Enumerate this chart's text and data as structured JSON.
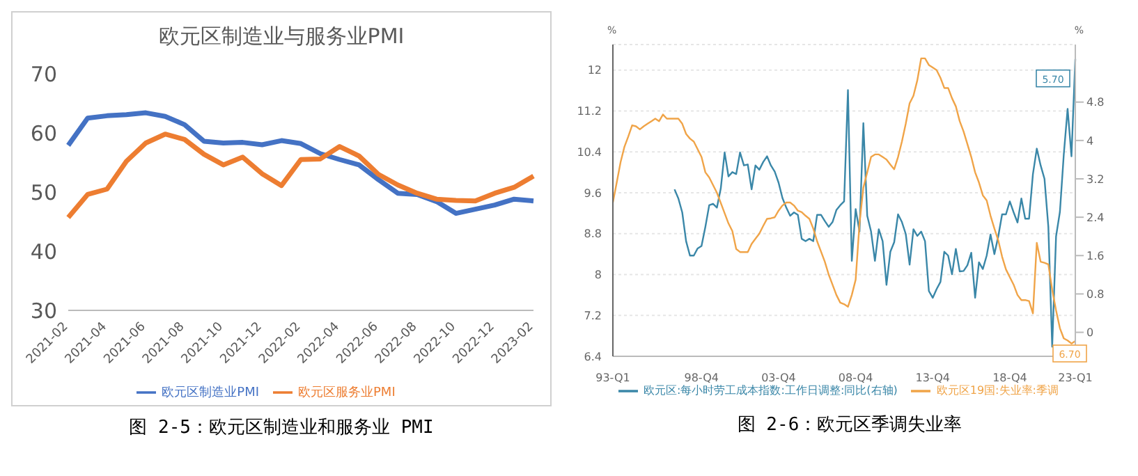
{
  "chart_data": [
    {
      "type": "line",
      "title": "欧元区制造业与服务业PMI",
      "categories": [
        "2021-02",
        null,
        "2021-04",
        null,
        "2021-06",
        null,
        "2021-08",
        null,
        "2021-10",
        null,
        "2021-12",
        null,
        "2022-02",
        null,
        "2022-04",
        null,
        "2022-06",
        null,
        "2022-08",
        null,
        "2022-10",
        null,
        "2022-12",
        null,
        "2023-02"
      ],
      "series": [
        {
          "name": "欧元区制造业PMI",
          "color": "#4472c4",
          "values": [
            57.9,
            62.5,
            62.9,
            63.1,
            63.4,
            62.8,
            61.4,
            58.6,
            58.3,
            58.4,
            58.0,
            58.7,
            58.2,
            56.5,
            55.5,
            54.6,
            52.1,
            49.8,
            49.6,
            48.4,
            46.4,
            47.1,
            47.8,
            48.8,
            48.5
          ]
        },
        {
          "name": "欧元区服务业PMI",
          "color": "#ed7d31",
          "values": [
            45.7,
            49.6,
            50.5,
            55.2,
            58.3,
            59.8,
            58.9,
            56.4,
            54.6,
            55.9,
            53.1,
            51.1,
            55.5,
            55.6,
            57.7,
            56.1,
            53.0,
            51.2,
            49.8,
            48.8,
            48.6,
            48.5,
            49.8,
            50.8,
            52.7
          ]
        }
      ],
      "ylim": [
        30,
        70
      ],
      "yticks": [
        30,
        40,
        50,
        60,
        70
      ],
      "legend": "bottom",
      "annotations": [
        "图 2-5：欧元区制造业和服务业 PMI"
      ]
    },
    {
      "type": "line",
      "ylabel": "%",
      "y2label": "%",
      "categories": [
        "93-Q1",
        null,
        null,
        null,
        null,
        null,
        null,
        null,
        null,
        null,
        null,
        null,
        null,
        null,
        null,
        null,
        null,
        null,
        null,
        null,
        null,
        null,
        null,
        "98-Q4",
        null,
        null,
        null,
        null,
        null,
        null,
        null,
        null,
        null,
        null,
        null,
        null,
        null,
        null,
        null,
        null,
        null,
        null,
        null,
        "03-Q4",
        null,
        null,
        null,
        null,
        null,
        null,
        null,
        null,
        null,
        null,
        null,
        null,
        null,
        null,
        null,
        null,
        null,
        null,
        null,
        "08-Q4",
        null,
        null,
        null,
        null,
        null,
        null,
        null,
        null,
        null,
        null,
        null,
        null,
        null,
        null,
        null,
        null,
        null,
        null,
        null,
        "13-Q4",
        null,
        null,
        null,
        null,
        null,
        null,
        null,
        null,
        null,
        null,
        null,
        null,
        null,
        null,
        null,
        null,
        null,
        null,
        null,
        "18-Q4",
        null,
        null,
        null,
        null,
        null,
        null,
        null,
        null,
        null,
        null,
        null,
        null,
        null,
        null,
        null,
        null,
        "23-Q1"
      ],
      "series": [
        {
          "name": "欧元区:每小时劳工成本指数:工作日调整:同比(右轴)",
          "color": "#3a87a8",
          "axis": "y2",
          "values": [
            null,
            null,
            null,
            null,
            null,
            null,
            null,
            null,
            null,
            null,
            null,
            null,
            null,
            null,
            null,
            null,
            2.98,
            2.79,
            2.5,
            1.9,
            1.6,
            1.6,
            1.75,
            1.8,
            2.2,
            2.65,
            2.68,
            2.6,
            3.0,
            3.75,
            3.25,
            3.34,
            3.3,
            3.75,
            3.48,
            3.5,
            2.98,
            3.48,
            3.39,
            3.55,
            3.67,
            3.48,
            3.35,
            3.12,
            2.8,
            2.6,
            2.43,
            2.5,
            2.45,
            1.95,
            1.9,
            1.95,
            1.9,
            2.45,
            2.45,
            2.32,
            2.2,
            2.3,
            2.55,
            2.65,
            2.73,
            5.05,
            1.49,
            2.57,
            2.1,
            4.36,
            2.43,
            2.1,
            1.49,
            2.15,
            1.9,
            0.99,
            1.68,
            1.88,
            2.46,
            2.3,
            2.05,
            1.41,
            2.15,
            2.01,
            2.1,
            1.9,
            0.86,
            0.72,
            0.9,
            1.05,
            1.68,
            1.6,
            1.21,
            1.74,
            1.27,
            1.28,
            1.4,
            1.66,
            0.72,
            1.46,
            1.32,
            1.6,
            2.04,
            1.63,
            2.0,
            2.46,
            2.46,
            2.73,
            2.5,
            2.29,
            2.79,
            2.37,
            2.37,
            3.3,
            3.83,
            3.48,
            3.2,
            2.2,
            -0.3,
            2.0,
            2.51,
            3.7,
            4.66,
            3.67,
            5.7
          ],
          "value_labels": [
            null,
            null,
            null,
            null,
            null,
            null,
            null,
            null,
            null,
            null,
            null,
            null,
            null,
            null,
            null,
            null,
            null,
            null,
            null,
            null,
            null,
            null,
            null,
            null,
            null,
            null,
            null,
            null,
            null,
            null,
            null,
            null,
            null,
            null,
            null,
            null,
            null,
            null,
            null,
            null,
            null,
            null,
            null,
            null,
            null,
            null,
            null,
            null,
            null,
            null,
            null,
            null,
            null,
            null,
            null,
            null,
            null,
            null,
            null,
            null,
            null,
            null,
            null,
            null,
            null,
            null,
            null,
            null,
            null,
            null,
            null,
            null,
            null,
            null,
            null,
            null,
            null,
            null,
            null,
            null,
            null,
            null,
            null,
            null,
            null,
            null,
            null,
            null,
            null,
            null,
            null,
            null,
            null,
            null,
            null,
            null,
            null,
            null,
            null,
            null,
            null,
            null,
            null,
            null,
            null,
            null,
            null,
            null,
            null,
            null,
            null,
            null,
            null,
            null,
            null,
            null,
            null,
            null,
            null,
            null,
            "5.70"
          ]
        },
        {
          "name": "欧元区19国:失业率:季调",
          "color": "#f0a448",
          "values": [
            9.41,
            9.8,
            10.2,
            10.5,
            10.7,
            10.92,
            10.9,
            10.84,
            10.9,
            10.95,
            11.0,
            11.05,
            11.0,
            11.13,
            11.05,
            11.05,
            11.05,
            11.05,
            10.95,
            10.75,
            10.66,
            10.6,
            10.45,
            10.3,
            10.0,
            9.9,
            9.75,
            9.6,
            9.4,
            9.2,
            9.0,
            8.85,
            8.5,
            8.44,
            8.44,
            8.44,
            8.6,
            8.7,
            8.8,
            8.95,
            9.09,
            9.1,
            9.12,
            9.25,
            9.35,
            9.41,
            9.41,
            9.35,
            9.25,
            9.22,
            9.15,
            9.09,
            8.9,
            8.65,
            8.45,
            8.25,
            8.0,
            7.8,
            7.6,
            7.45,
            7.42,
            7.37,
            7.6,
            7.9,
            9.0,
            9.7,
            10.0,
            10.3,
            10.35,
            10.35,
            10.3,
            10.25,
            10.15,
            10.06,
            10.3,
            10.6,
            10.95,
            11.35,
            11.5,
            11.8,
            12.23,
            12.23,
            12.1,
            12.05,
            12.0,
            11.85,
            11.65,
            11.65,
            11.45,
            11.29,
            11.0,
            10.8,
            10.55,
            10.3,
            10.0,
            9.8,
            9.55,
            9.45,
            9.15,
            8.9,
            8.67,
            8.35,
            8.1,
            7.95,
            7.8,
            7.6,
            7.5,
            7.5,
            7.48,
            7.24,
            8.62,
            8.25,
            8.23,
            8.2,
            7.7,
            7.3,
            6.95,
            6.75,
            6.71,
            6.65,
            6.7
          ],
          "value_labels": [
            null,
            null,
            null,
            null,
            null,
            null,
            null,
            null,
            null,
            null,
            null,
            null,
            null,
            null,
            null,
            null,
            null,
            null,
            null,
            null,
            null,
            null,
            null,
            null,
            null,
            null,
            null,
            null,
            null,
            null,
            null,
            null,
            null,
            null,
            null,
            null,
            null,
            null,
            null,
            null,
            null,
            null,
            null,
            null,
            null,
            null,
            null,
            null,
            null,
            null,
            null,
            null,
            null,
            null,
            null,
            null,
            null,
            null,
            null,
            null,
            null,
            null,
            null,
            null,
            null,
            null,
            null,
            null,
            null,
            null,
            null,
            null,
            null,
            null,
            null,
            null,
            null,
            null,
            null,
            null,
            null,
            null,
            null,
            null,
            null,
            null,
            null,
            null,
            null,
            null,
            null,
            null,
            null,
            null,
            null,
            null,
            null,
            null,
            null,
            null,
            null,
            null,
            null,
            null,
            null,
            null,
            null,
            null,
            null,
            null,
            null,
            null,
            null,
            null,
            null,
            null,
            null,
            null,
            null,
            null,
            "6.70"
          ]
        }
      ],
      "ylim": [
        6.4,
        12.5
      ],
      "yticks": [
        6.4,
        7.2,
        8,
        8.8,
        9.6,
        10.4,
        11.2,
        12
      ],
      "y2lim": [
        -0.5,
        6.0
      ],
      "y2ticks": [
        0,
        0.8,
        1.6,
        2.4,
        3.2,
        4,
        4.8
      ],
      "grid": "y",
      "legend": "bottom",
      "annotations": [
        "图 2-6：欧元区季调失业率"
      ]
    }
  ]
}
